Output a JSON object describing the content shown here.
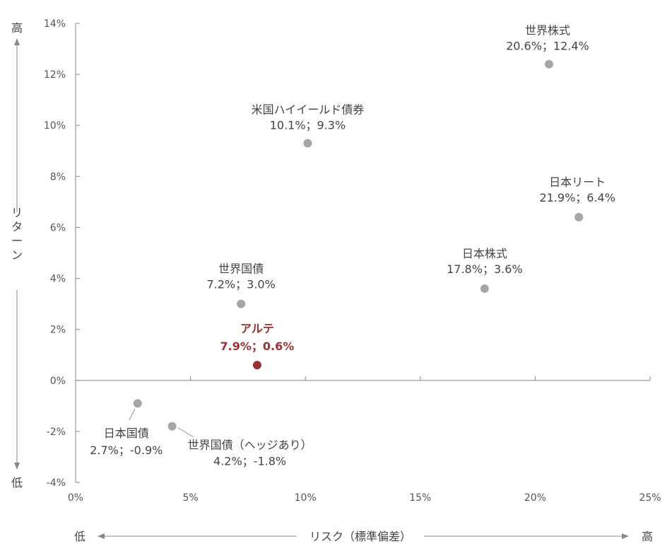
{
  "chart_data": {
    "type": "scatter",
    "xlim": [
      0,
      25
    ],
    "ylim": [
      -4,
      14
    ],
    "x_ticks": [
      "0%",
      "5%",
      "10%",
      "15%",
      "20%",
      "25%"
    ],
    "y_ticks": [
      "-4%",
      "-2%",
      "0%",
      "2%",
      "4%",
      "6%",
      "8%",
      "10%",
      "12%",
      "14%"
    ],
    "y_axis": {
      "label": "リターン",
      "high": "高",
      "low": "低"
    },
    "x_axis": {
      "label": "リスク（標準偏差）",
      "high": "高",
      "low": "低"
    },
    "points": [
      {
        "name": "世界株式",
        "x": 20.6,
        "y": 12.4,
        "value_label": "20.6%；12.4%",
        "highlight": false
      },
      {
        "name": "米国ハイイールド債券",
        "x": 10.1,
        "y": 9.3,
        "value_label": "10.1%；9.3%",
        "highlight": false
      },
      {
        "name": "日本リート",
        "x": 21.9,
        "y": 6.4,
        "value_label": "21.9%；6.4%",
        "highlight": false
      },
      {
        "name": "日本株式",
        "x": 17.8,
        "y": 3.6,
        "value_label": "17.8%；3.6%",
        "highlight": false
      },
      {
        "name": "世界国債",
        "x": 7.2,
        "y": 3.0,
        "value_label": "7.2%；3.0%",
        "highlight": false
      },
      {
        "name": "アルテ",
        "x": 7.9,
        "y": 0.6,
        "value_label": "7.9%；0.6%",
        "highlight": true
      },
      {
        "name": "日本国債",
        "x": 2.7,
        "y": -0.9,
        "value_label": "2.7%；-0.9%",
        "highlight": false
      },
      {
        "name": "世界国債（ヘッジあり）",
        "x": 4.2,
        "y": -1.8,
        "value_label": "4.2%；-1.8%",
        "highlight": false
      }
    ],
    "colors": {
      "point": "#a6a6a6",
      "highlight": "#993333",
      "axis": "#888888",
      "text": "#444444"
    }
  }
}
